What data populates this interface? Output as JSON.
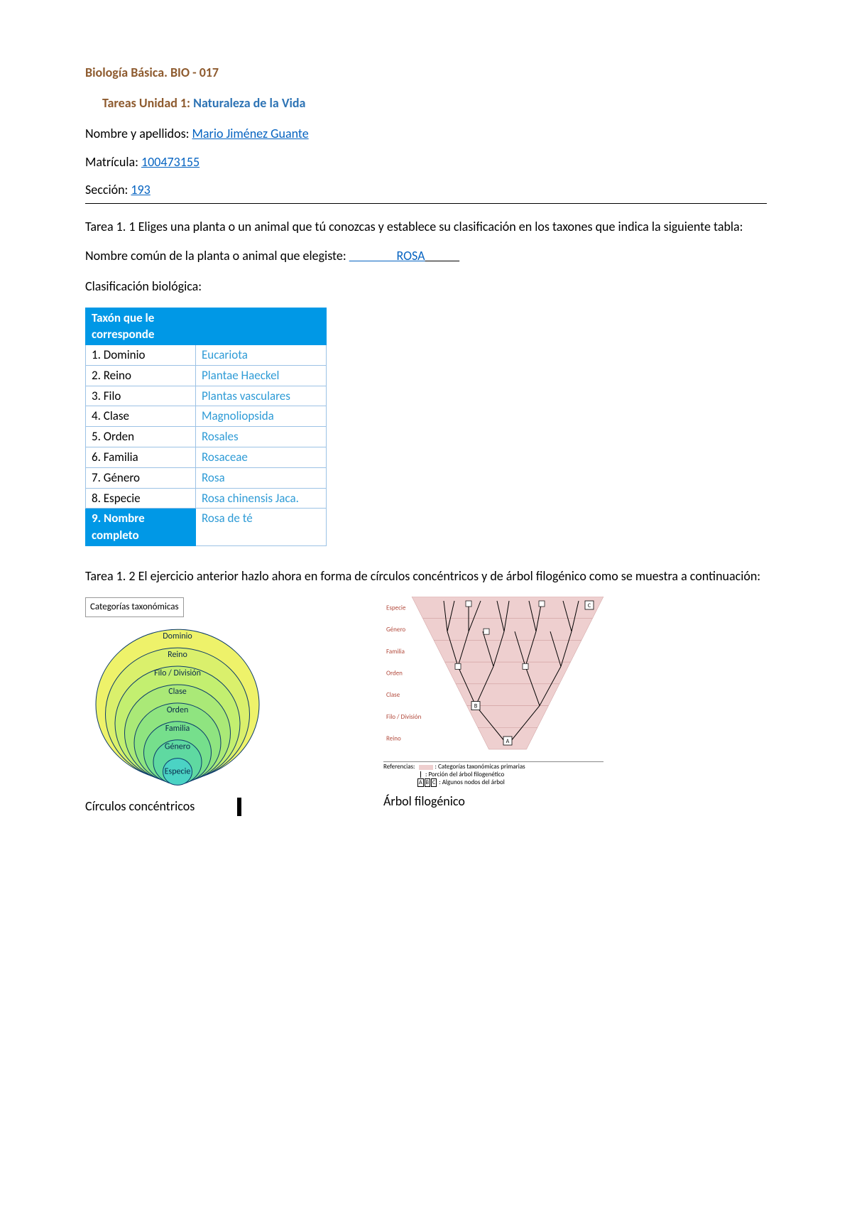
{
  "header": {
    "course_title_prefix": "Biología Básica. BIO",
    "course_title_dash": " - ",
    "course_code": "017",
    "course_title_color": "#8e5b2f",
    "tasks_label": "Tareas Unidad 1:",
    "tasks_label_color": "#8e5b2f",
    "unit_name": " Naturaleza de la Vida",
    "unit_name_color": "#2e74b5"
  },
  "fields": {
    "name_label": "Nombre y apellidos: ",
    "name_value": "Mario Jiménez Guante ",
    "matricula_label": "Matrícula: ",
    "matricula_value": "100473155",
    "section_label": "Sección: ",
    "section_value": "193"
  },
  "tarea11": {
    "text": "Tarea 1. 1 Eliges una planta o un animal que tú conozcas y establece su clasificación en los taxones que indica la siguiente tabla:",
    "chosen_label": "Nombre común de la planta o animal que elegiste: ",
    "blank_pre": "           ",
    "chosen_value": "ROSA",
    "blank_post": "        ",
    "classif_label": "Clasificación biológica:"
  },
  "table": {
    "header_left": "Taxón que le corresponde",
    "header_right": "",
    "rows": [
      {
        "label": "1. Dominio",
        "value": "Eucariota"
      },
      {
        "label": "2. Reino",
        "value": "Plantae Haeckel"
      },
      {
        "label": "3. Filo",
        "value": "Plantas vasculares"
      },
      {
        "label": "4. Clase",
        "value": "Magnoliopsida"
      },
      {
        "label": "5. Orden",
        "value": "Rosales"
      },
      {
        "label": "6. Familia",
        "value": "Rosaceae"
      },
      {
        "label": "7. Género",
        "value": "Rosa"
      },
      {
        "label": "8. Especie",
        "value": "Rosa chinensis Jaca."
      }
    ],
    "footer_left": "9. Nombre completo",
    "footer_right": "Rosa de té",
    "header_bg": "#0098e6",
    "border_color": "#9cc2e5",
    "value_color": "#2e9bd6"
  },
  "tarea12": {
    "text": "Tarea 1. 2 El ejercicio anterior hazlo ahora en forma de círculos concéntricos y de árbol filogénico como se muestra a continuación:"
  },
  "circles": {
    "box_label": "Categorías taxonómicas",
    "levels": [
      "Dominio",
      "Reino",
      "Filo / División",
      "Clase",
      "Orden",
      "Familia",
      "Género",
      "Especie"
    ],
    "fills": [
      "#eef26a",
      "#daf06c",
      "#c3ef70",
      "#aae977",
      "#8fe480",
      "#76df8c",
      "#5fd9a1",
      "#4bd3c4"
    ],
    "stroke": "#0a3a6b",
    "caption": "Círculos concéntricos"
  },
  "tree": {
    "caption": "Árbol filogénico",
    "levels": [
      "Especie",
      "Género",
      "Familia",
      "Orden",
      "Clase",
      "Filo / División",
      "Reino"
    ],
    "level_color": "#b2493b",
    "band_fill": "#eecfcf",
    "line_color": "#000000",
    "node_letters": [
      "A",
      "B",
      "C"
    ],
    "refs_title": "Referencias:",
    "refs": [
      ": Categorías taxonómicas primarias",
      ": Porción del árbol filogenético",
      ": Algunos nodos del árbol"
    ],
    "refs_marker_labels": "A B C"
  }
}
